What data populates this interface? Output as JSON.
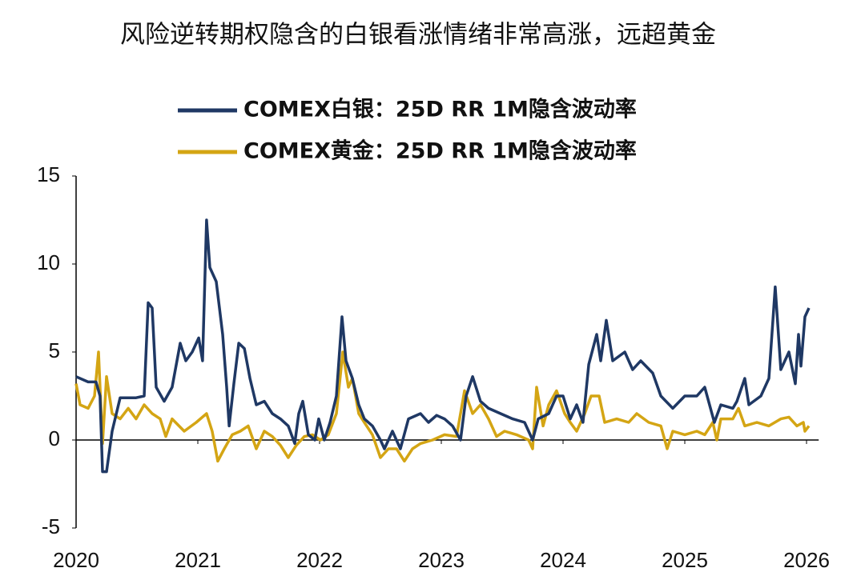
{
  "chart_data": {
    "type": "line",
    "title": "风险逆转期权隐含的白银看涨情绪非常高涨，远超黄金",
    "xlim": [
      2020,
      2026.1
    ],
    "xticks": [
      2020,
      2021,
      2022,
      2023,
      2024,
      2025,
      2026
    ],
    "ylim": [
      -5,
      15
    ],
    "yticks": [
      -5,
      0,
      5,
      10,
      15
    ],
    "series": [
      {
        "name": "COMEX白银：25D RR 1M隐含波动率",
        "color": "#1f3864",
        "x": [
          2020.0,
          2020.099,
          2020.164,
          2020.197,
          2020.217,
          2020.25,
          2020.296,
          2020.362,
          2020.493,
          2020.559,
          2020.592,
          2020.625,
          2020.658,
          2020.724,
          2020.789,
          2020.855,
          2020.901,
          2020.954,
          2021.007,
          2021.039,
          2021.072,
          2021.099,
          2021.151,
          2021.204,
          2021.237,
          2021.257,
          2021.296,
          2021.336,
          2021.382,
          2021.428,
          2021.48,
          2021.546,
          2021.612,
          2021.678,
          2021.743,
          2021.796,
          2021.829,
          2021.862,
          2021.908,
          2021.961,
          2021.993,
          2022.039,
          2022.086,
          2022.138,
          2022.184,
          2022.217,
          2022.27,
          2022.322,
          2022.368,
          2022.434,
          2022.5,
          2022.533,
          2022.599,
          2022.664,
          2022.73,
          2022.829,
          2022.895,
          2022.961,
          2023.026,
          2023.092,
          2023.158,
          2023.204,
          2023.257,
          2023.322,
          2023.388,
          2023.487,
          2023.586,
          2023.684,
          2023.75,
          2023.796,
          2023.882,
          2023.947,
          2024.0,
          2024.059,
          2024.112,
          2024.164,
          2024.211,
          2024.276,
          2024.309,
          2024.355,
          2024.408,
          2024.507,
          2024.572,
          2024.638,
          2024.737,
          2024.803,
          2024.901,
          2025.0,
          2025.099,
          2025.164,
          2025.243,
          2025.296,
          2025.395,
          2025.428,
          2025.493,
          2025.526,
          2025.625,
          2025.691,
          2025.743,
          2025.789,
          2025.855,
          2025.908,
          2025.934,
          2025.954,
          2025.987,
          2026.02
        ],
        "values": [
          3.6,
          3.3,
          3.3,
          2.5,
          -1.8,
          -1.8,
          0.5,
          2.4,
          2.4,
          2.5,
          7.8,
          7.5,
          3,
          2.2,
          3,
          5.5,
          4.5,
          5,
          5.8,
          4.5,
          12.5,
          9.8,
          9,
          6,
          3,
          0.8,
          3.2,
          5.5,
          5.2,
          3.5,
          2,
          2.2,
          1.5,
          1.2,
          0.8,
          -0.2,
          1.5,
          2.2,
          0.3,
          0,
          1.2,
          0,
          1,
          2.5,
          7,
          4.5,
          3.5,
          2,
          1.2,
          0.8,
          0,
          -0.5,
          0.5,
          -0.5,
          1.2,
          1.5,
          1,
          1.4,
          1.2,
          0.8,
          0,
          2.5,
          3.6,
          2.2,
          1.8,
          1.5,
          1.2,
          1,
          0,
          1.2,
          1.5,
          2.5,
          2.5,
          1.2,
          2,
          1,
          4.3,
          6,
          4.5,
          6.8,
          4.5,
          5,
          4,
          4.5,
          3.8,
          2.5,
          1.8,
          2.5,
          2.5,
          3,
          1,
          2,
          1.8,
          2.2,
          3.5,
          2,
          2.5,
          3.5,
          8.7,
          4,
          5,
          3.2,
          6,
          4.2,
          7,
          7.5
        ]
      },
      {
        "name": "COMEX黄金：25D RR 1M隐含波动率",
        "color": "#d4a514",
        "x": [
          2020.0,
          2020.033,
          2020.099,
          2020.151,
          2020.184,
          2020.217,
          2020.25,
          2020.296,
          2020.362,
          2020.428,
          2020.493,
          2020.559,
          2020.625,
          2020.691,
          2020.737,
          2020.789,
          2020.888,
          2020.987,
          2021.072,
          2021.118,
          2021.164,
          2021.217,
          2021.283,
          2021.349,
          2021.414,
          2021.48,
          2021.546,
          2021.612,
          2021.678,
          2021.743,
          2021.809,
          2021.875,
          2021.941,
          2022.007,
          2022.072,
          2022.138,
          2022.191,
          2022.237,
          2022.27,
          2022.322,
          2022.368,
          2022.434,
          2022.5,
          2022.566,
          2022.632,
          2022.697,
          2022.763,
          2022.829,
          2022.928,
          2023.026,
          2023.125,
          2023.191,
          2023.257,
          2023.322,
          2023.388,
          2023.454,
          2023.52,
          2023.618,
          2023.717,
          2023.75,
          2023.783,
          2023.836,
          2023.882,
          2023.947,
          2024.013,
          2024.059,
          2024.112,
          2024.178,
          2024.23,
          2024.296,
          2024.342,
          2024.441,
          2024.539,
          2024.605,
          2024.704,
          2024.803,
          2024.855,
          2024.901,
          2025.0,
          2025.099,
          2025.164,
          2025.23,
          2025.263,
          2025.296,
          2025.395,
          2025.441,
          2025.493,
          2025.592,
          2025.691,
          2025.789,
          2025.855,
          2025.921,
          2025.974,
          2025.987,
          2026.02
        ],
        "values": [
          3.2,
          2,
          1.8,
          2.5,
          5,
          -0.2,
          3.6,
          1.5,
          1.2,
          1.8,
          1.2,
          2,
          1.5,
          1.2,
          0.2,
          1.2,
          0.5,
          1,
          1.5,
          0.5,
          -1.2,
          -0.5,
          0.3,
          0.5,
          0.8,
          -0.5,
          0.5,
          0.2,
          -0.3,
          -1,
          -0.3,
          0.2,
          0.3,
          0,
          0.3,
          1.5,
          5,
          3,
          3.5,
          1.5,
          1,
          0.3,
          -1,
          -0.5,
          -0.5,
          -1.2,
          -0.5,
          -0.2,
          0,
          0.3,
          0.2,
          2.8,
          1.5,
          2,
          1.2,
          0.2,
          0.5,
          0.3,
          0,
          -0.5,
          3,
          0.8,
          2,
          2.8,
          1.5,
          1,
          0.5,
          1.5,
          2.5,
          2.5,
          1,
          1.2,
          1,
          1.5,
          1,
          0.8,
          -0.5,
          0.5,
          0.3,
          0.5,
          0.3,
          1,
          0,
          1.2,
          1.2,
          1.8,
          0.8,
          1,
          0.8,
          1.2,
          1.3,
          0.8,
          1,
          0.5,
          0.8
        ]
      }
    ]
  }
}
